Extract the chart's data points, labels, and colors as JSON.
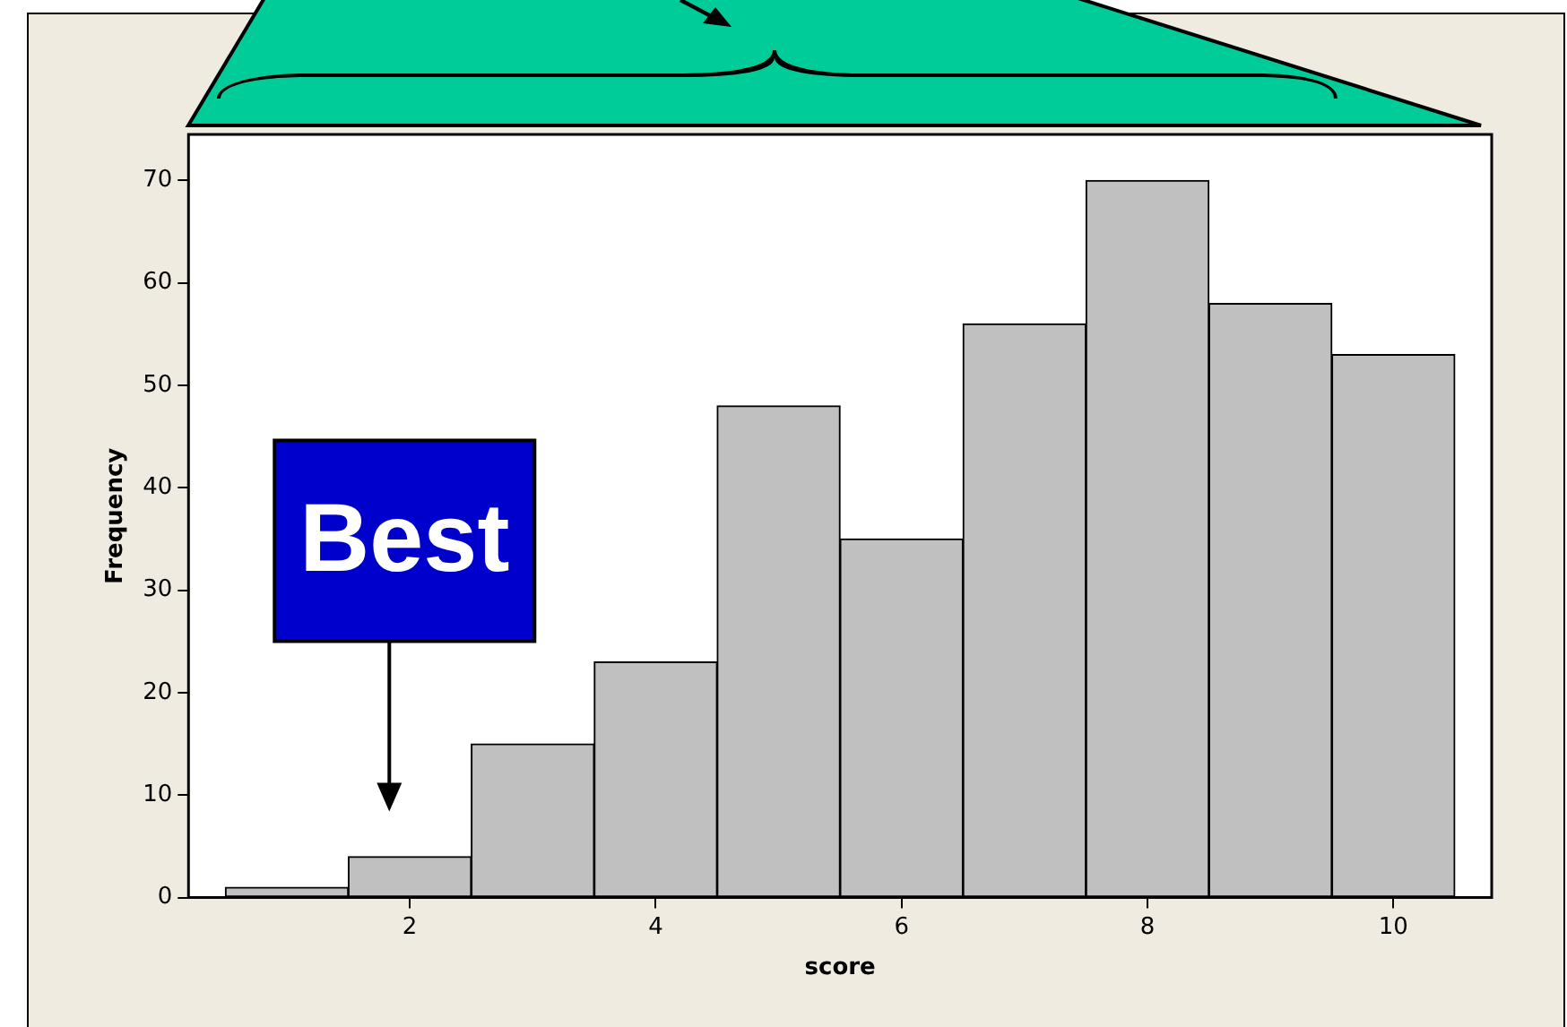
{
  "chart_data": {
    "type": "histogram",
    "xlabel": "score",
    "ylabel": "Frequency",
    "bins": [
      0.5,
      1.5,
      2.5,
      3.5,
      4.5,
      5.5,
      6.5,
      7.5,
      8.5,
      9.5,
      10.5
    ],
    "values": [
      1,
      4,
      15,
      23,
      48,
      35,
      56,
      70,
      58,
      53
    ],
    "color": "#c0c0c0",
    "xlim": [
      0.2,
      10.8
    ],
    "xticks": [
      2,
      4,
      6,
      8,
      10
    ],
    "ylim": [
      0,
      74.5
    ],
    "yticks": [
      0,
      10,
      20,
      30,
      40,
      50,
      60,
      70
    ],
    "grid": false,
    "legend": false,
    "annotations": [
      "Best"
    ]
  }
}
